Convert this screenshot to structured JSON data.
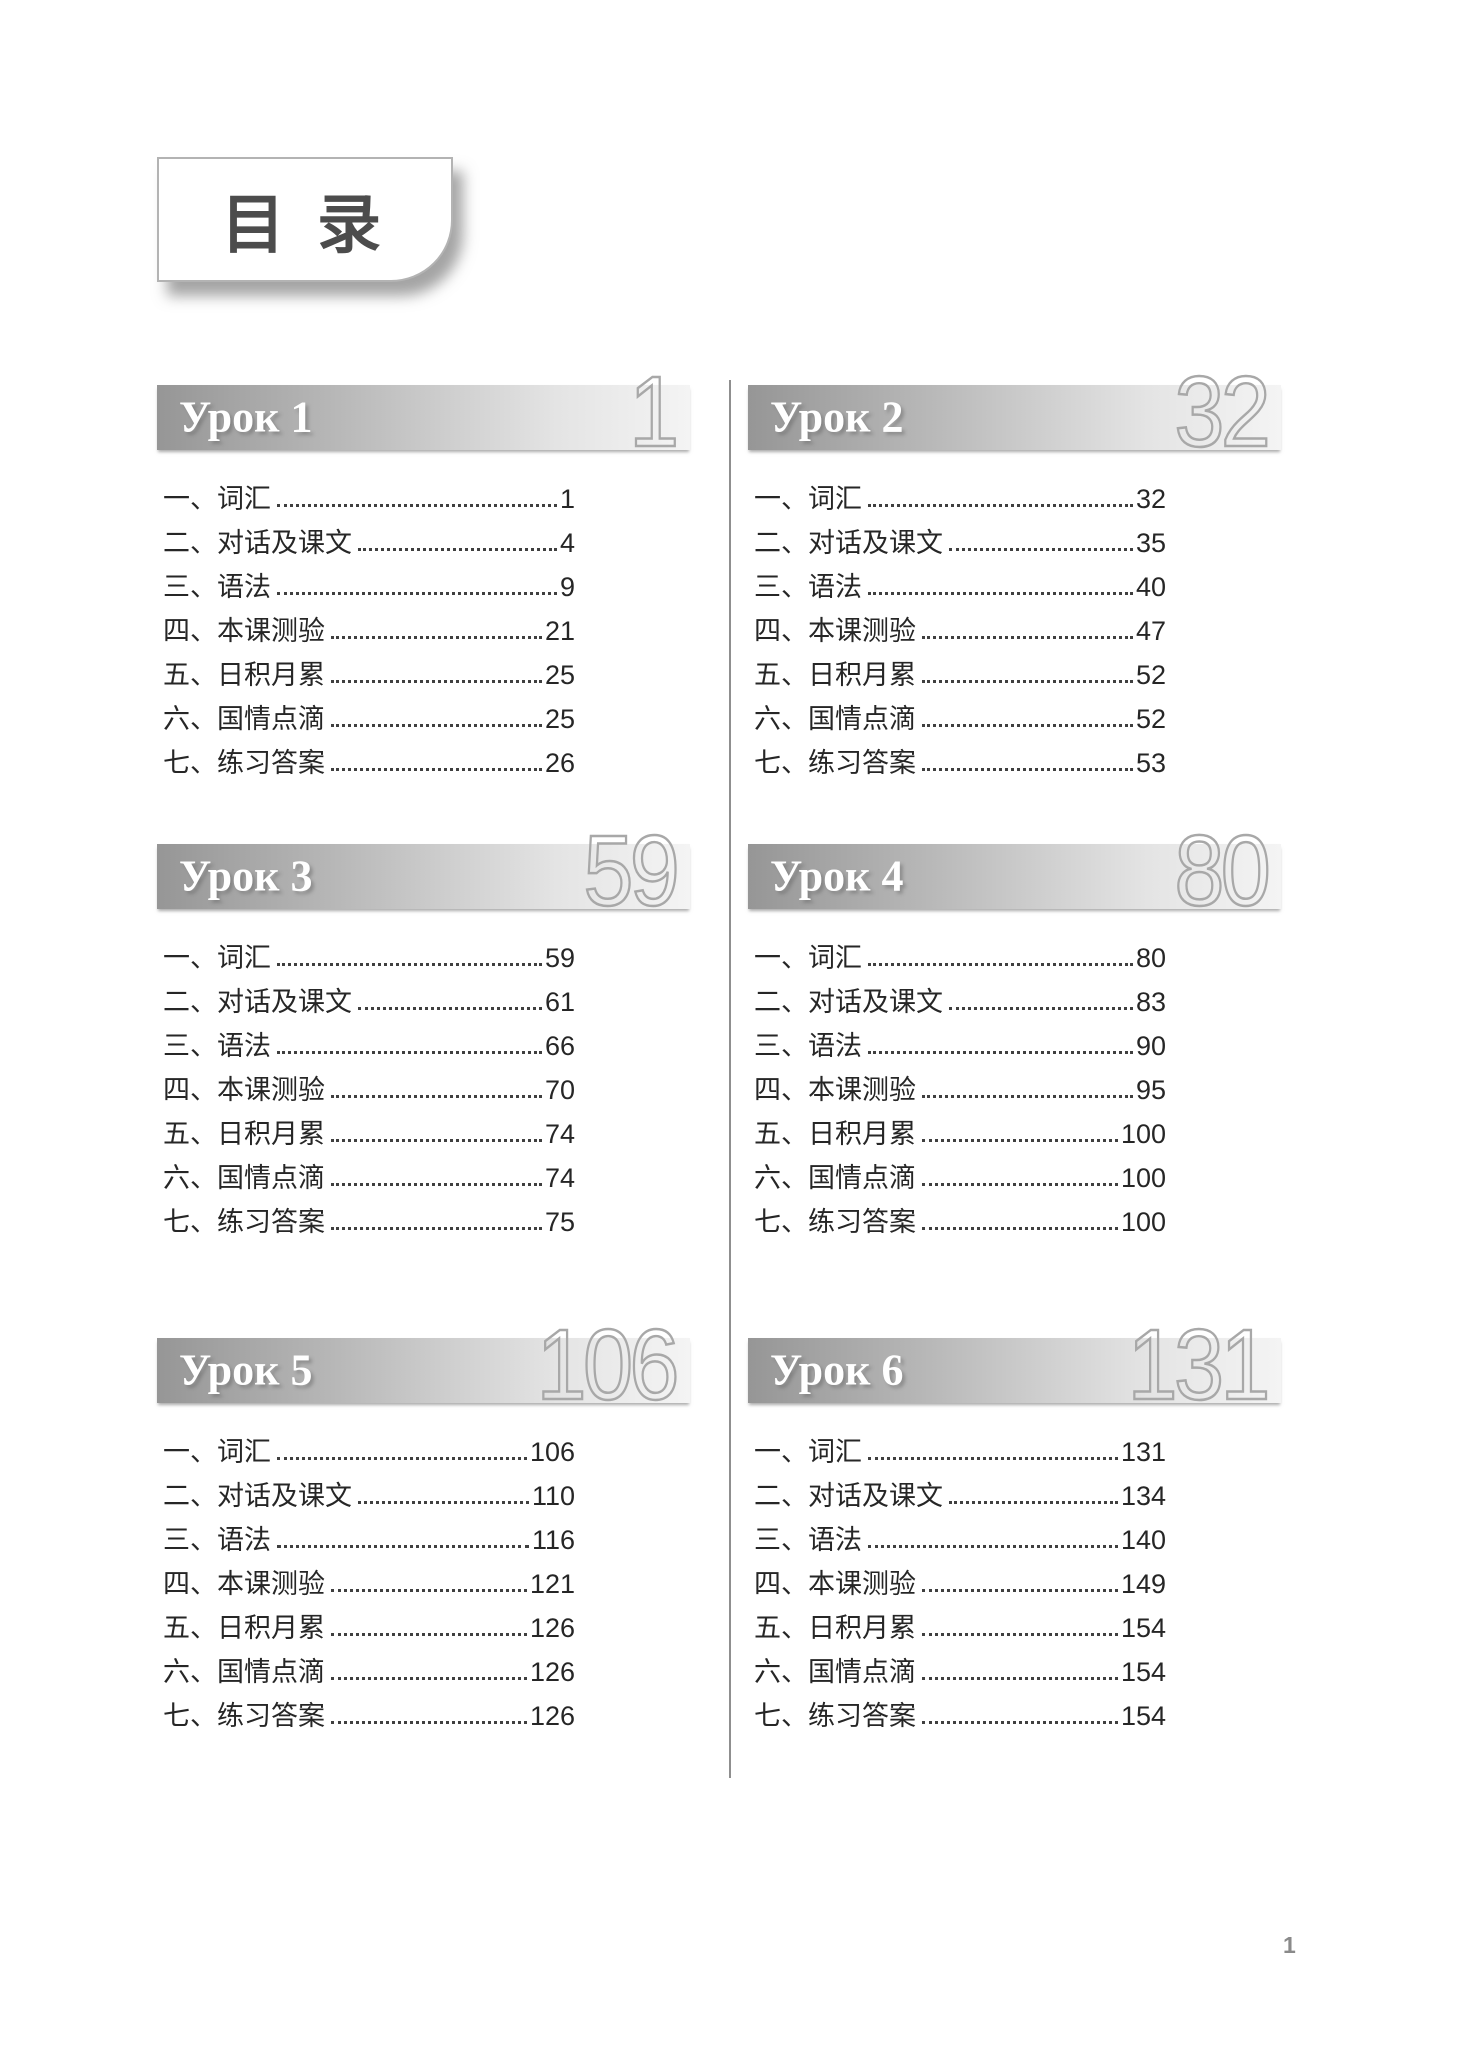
{
  "toc": {
    "title": "目 录",
    "folio_page_number": "1"
  },
  "colors": {
    "bar_gradient_start": "#969696",
    "bar_gradient_end": "#f4f4f4",
    "big_number_gray": "#a8a8a8",
    "text_dark": "#262626"
  },
  "lessons": [
    {
      "title": "Урок 1",
      "start_page": "1",
      "items": [
        {
          "label": "一、词汇",
          "page": "1"
        },
        {
          "label": "二、对话及课文",
          "page": "4"
        },
        {
          "label": "三、语法",
          "page": "9"
        },
        {
          "label": "四、本课测验",
          "page": "21"
        },
        {
          "label": "五、日积月累",
          "page": "25"
        },
        {
          "label": "六、国情点滴",
          "page": "25"
        },
        {
          "label": "七、练习答案",
          "page": "26"
        }
      ]
    },
    {
      "title": "Урок 2",
      "start_page": "32",
      "items": [
        {
          "label": "一、词汇",
          "page": "32"
        },
        {
          "label": "二、对话及课文",
          "page": "35"
        },
        {
          "label": "三、语法",
          "page": "40"
        },
        {
          "label": "四、本课测验",
          "page": "47"
        },
        {
          "label": "五、日积月累",
          "page": "52"
        },
        {
          "label": "六、国情点滴",
          "page": "52"
        },
        {
          "label": "七、练习答案",
          "page": "53"
        }
      ]
    },
    {
      "title": "Урок 3",
      "start_page": "59",
      "items": [
        {
          "label": "一、词汇",
          "page": "59"
        },
        {
          "label": "二、对话及课文",
          "page": "61"
        },
        {
          "label": "三、语法",
          "page": "66"
        },
        {
          "label": "四、本课测验",
          "page": "70"
        },
        {
          "label": "五、日积月累",
          "page": "74"
        },
        {
          "label": "六、国情点滴",
          "page": "74"
        },
        {
          "label": "七、练习答案",
          "page": "75"
        }
      ]
    },
    {
      "title": "Урок 4",
      "start_page": "80",
      "items": [
        {
          "label": "一、词汇",
          "page": "80"
        },
        {
          "label": "二、对话及课文",
          "page": "83"
        },
        {
          "label": "三、语法",
          "page": "90"
        },
        {
          "label": "四、本课测验",
          "page": "95"
        },
        {
          "label": "五、日积月累",
          "page": "100"
        },
        {
          "label": "六、国情点滴",
          "page": "100"
        },
        {
          "label": "七、练习答案",
          "page": "100"
        }
      ]
    },
    {
      "title": "Урок 5",
      "start_page": "106",
      "items": [
        {
          "label": "一、词汇",
          "page": "106"
        },
        {
          "label": "二、对话及课文",
          "page": "110"
        },
        {
          "label": "三、语法",
          "page": "116"
        },
        {
          "label": "四、本课测验",
          "page": "121"
        },
        {
          "label": "五、日积月累",
          "page": "126"
        },
        {
          "label": "六、国情点滴",
          "page": "126"
        },
        {
          "label": "七、练习答案",
          "page": "126"
        }
      ]
    },
    {
      "title": "Урок 6",
      "start_page": "131",
      "items": [
        {
          "label": "一、词汇",
          "page": "131"
        },
        {
          "label": "二、对话及课文",
          "page": "134"
        },
        {
          "label": "三、语法",
          "page": "140"
        },
        {
          "label": "四、本课测验",
          "page": "149"
        },
        {
          "label": "五、日积月累",
          "page": "154"
        },
        {
          "label": "六、国情点滴",
          "page": "154"
        },
        {
          "label": "七、练习答案",
          "page": "154"
        }
      ]
    }
  ]
}
